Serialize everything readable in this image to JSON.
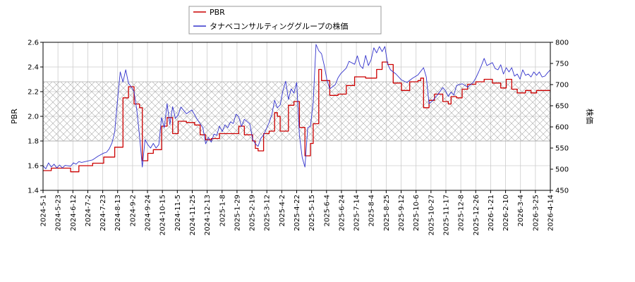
{
  "chart_data": {
    "type": "line",
    "x_ticks": [
      "2024-5-1",
      "2024-5-23",
      "2024-6-12",
      "2024-7-2",
      "2024-7-23",
      "2024-8-13",
      "2024-9-2",
      "2024-9-24",
      "2024-10-15",
      "2024-11-5",
      "2024-11-25",
      "2024-12-13",
      "2025-1-8",
      "2025-1-29",
      "2025-2-19",
      "2025-3-12",
      "2025-4-2",
      "2025-4-22",
      "2025-5-15",
      "2025-6-4",
      "2025-6-24",
      "2025-7-14",
      "2025-8-4",
      "2025-8-25",
      "2025-9-12",
      "2025-10-6",
      "2025-10-27",
      "2025-11-17",
      "2025-12-8",
      "2025-12-26",
      "2026-1-21",
      "2026-2-10",
      "2026-3-4",
      "2026-3-25",
      "2026-4-14"
    ],
    "y_left_label": "PBR",
    "y_right_label": "株価",
    "y_left_range": [
      1.4,
      2.6
    ],
    "y_left_ticks": [
      "1.4",
      "1.6",
      "1.8",
      "2.0",
      "2.2",
      "2.4",
      "2.6"
    ],
    "y_right_range": [
      450,
      800
    ],
    "y_right_ticks": [
      "450",
      "500",
      "550",
      "600",
      "650",
      "700",
      "750",
      "800"
    ],
    "band_left": [
      1.8,
      2.28
    ],
    "grid": true,
    "legend_position": "top-center",
    "series": [
      {
        "name": "PBR",
        "axis": "left",
        "color": "#cc0000",
        "points": [
          [
            0,
            1.56
          ],
          [
            3,
            1.58
          ],
          [
            8,
            1.58
          ],
          [
            10,
            1.55
          ],
          [
            13,
            1.6
          ],
          [
            18,
            1.62
          ],
          [
            22,
            1.67
          ],
          [
            26,
            1.75
          ],
          [
            29,
            2.15
          ],
          [
            31,
            2.24
          ],
          [
            33,
            2.1
          ],
          [
            35,
            2.07
          ],
          [
            36,
            1.64
          ],
          [
            38,
            1.7
          ],
          [
            40,
            1.73
          ],
          [
            43,
            1.92
          ],
          [
            45,
            1.99
          ],
          [
            47,
            1.86
          ],
          [
            49,
            1.96
          ],
          [
            52,
            1.95
          ],
          [
            55,
            1.93
          ],
          [
            57,
            1.85
          ],
          [
            59,
            1.81
          ],
          [
            61,
            1.82
          ],
          [
            64,
            1.86
          ],
          [
            67,
            1.86
          ],
          [
            69,
            1.86
          ],
          [
            71,
            1.92
          ],
          [
            73,
            1.85
          ],
          [
            76,
            1.8
          ],
          [
            77,
            1.74
          ],
          [
            78,
            1.72
          ],
          [
            80,
            1.86
          ],
          [
            82,
            1.88
          ],
          [
            84,
            2.03
          ],
          [
            85,
            2.0
          ],
          [
            86,
            1.88
          ],
          [
            89,
            2.09
          ],
          [
            91,
            2.12
          ],
          [
            93,
            1.91
          ],
          [
            95,
            1.68
          ],
          [
            97,
            1.78
          ],
          [
            98,
            1.94
          ],
          [
            100,
            2.38
          ],
          [
            101,
            2.29
          ],
          [
            104,
            2.17
          ],
          [
            107,
            2.18
          ],
          [
            110,
            2.25
          ],
          [
            113,
            2.32
          ],
          [
            117,
            2.31
          ],
          [
            121,
            2.38
          ],
          [
            123,
            2.44
          ],
          [
            125,
            2.42
          ],
          [
            127,
            2.27
          ],
          [
            130,
            2.21
          ],
          [
            133,
            2.28
          ],
          [
            136,
            2.29
          ],
          [
            137,
            2.31
          ],
          [
            138,
            2.07
          ],
          [
            140,
            2.13
          ],
          [
            142,
            2.18
          ],
          [
            145,
            2.12
          ],
          [
            147,
            2.1
          ],
          [
            148,
            2.16
          ],
          [
            150,
            2.15
          ],
          [
            152,
            2.22
          ],
          [
            154,
            2.26
          ],
          [
            157,
            2.28
          ],
          [
            160,
            2.3
          ],
          [
            163,
            2.27
          ],
          [
            166,
            2.23
          ],
          [
            168,
            2.3
          ],
          [
            170,
            2.22
          ],
          [
            172,
            2.19
          ],
          [
            175,
            2.21
          ],
          [
            177,
            2.19
          ],
          [
            179,
            2.21
          ],
          [
            184,
            2.21
          ]
        ]
      },
      {
        "name": "タナベコンサルティンググループの株価",
        "axis": "right",
        "color": "#3333cc",
        "points": [
          [
            0,
            508
          ],
          [
            1,
            501
          ],
          [
            2,
            515
          ],
          [
            3,
            505
          ],
          [
            4,
            512
          ],
          [
            5,
            503
          ],
          [
            6,
            510
          ],
          [
            7,
            503
          ],
          [
            8,
            509
          ],
          [
            10,
            507
          ],
          [
            11,
            515
          ],
          [
            12,
            512
          ],
          [
            13,
            518
          ],
          [
            14,
            516
          ],
          [
            16,
            519
          ],
          [
            18,
            522
          ],
          [
            20,
            531
          ],
          [
            22,
            538
          ],
          [
            23,
            540
          ],
          [
            24,
            548
          ],
          [
            25,
            562
          ],
          [
            26,
            588
          ],
          [
            27,
            662
          ],
          [
            28,
            730
          ],
          [
            29,
            706
          ],
          [
            30,
            735
          ],
          [
            31,
            703
          ],
          [
            32,
            695
          ],
          [
            33,
            683
          ],
          [
            34,
            640
          ],
          [
            35,
            578
          ],
          [
            36,
            505
          ],
          [
            37,
            570
          ],
          [
            38,
            558
          ],
          [
            39,
            550
          ],
          [
            40,
            561
          ],
          [
            41,
            550
          ],
          [
            42,
            558
          ],
          [
            43,
            622
          ],
          [
            44,
            598
          ],
          [
            45,
            655
          ],
          [
            46,
            605
          ],
          [
            47,
            648
          ],
          [
            48,
            620
          ],
          [
            49,
            628
          ],
          [
            50,
            647
          ],
          [
            52,
            631
          ],
          [
            54,
            640
          ],
          [
            56,
            617
          ],
          [
            58,
            598
          ],
          [
            59,
            560
          ],
          [
            60,
            575
          ],
          [
            61,
            564
          ],
          [
            62,
            583
          ],
          [
            63,
            580
          ],
          [
            64,
            602
          ],
          [
            65,
            589
          ],
          [
            66,
            605
          ],
          [
            67,
            598
          ],
          [
            68,
            612
          ],
          [
            69,
            608
          ],
          [
            70,
            630
          ],
          [
            71,
            624
          ],
          [
            72,
            601
          ],
          [
            73,
            618
          ],
          [
            75,
            607
          ],
          [
            76,
            571
          ],
          [
            77,
            560
          ],
          [
            78,
            554
          ],
          [
            79,
            573
          ],
          [
            80,
            581
          ],
          [
            82,
            610
          ],
          [
            83,
            629
          ],
          [
            84,
            663
          ],
          [
            85,
            645
          ],
          [
            86,
            652
          ],
          [
            87,
            686
          ],
          [
            88,
            708
          ],
          [
            89,
            665
          ],
          [
            90,
            690
          ],
          [
            91,
            680
          ],
          [
            92,
            705
          ],
          [
            93,
            580
          ],
          [
            94,
            528
          ],
          [
            95,
            505
          ],
          [
            96,
            598
          ],
          [
            97,
            602
          ],
          [
            98,
            658
          ],
          [
            99,
            795
          ],
          [
            100,
            780
          ],
          [
            101,
            773
          ],
          [
            102,
            745
          ],
          [
            103,
            710
          ],
          [
            104,
            690
          ],
          [
            106,
            700
          ],
          [
            107,
            716
          ],
          [
            108,
            726
          ],
          [
            110,
            739
          ],
          [
            111,
            755
          ],
          [
            113,
            748
          ],
          [
            114,
            768
          ],
          [
            115,
            745
          ],
          [
            116,
            738
          ],
          [
            117,
            769
          ],
          [
            118,
            745
          ],
          [
            119,
            759
          ],
          [
            120,
            787
          ],
          [
            121,
            775
          ],
          [
            122,
            790
          ],
          [
            123,
            778
          ],
          [
            124,
            790
          ],
          [
            125,
            748
          ],
          [
            126,
            735
          ],
          [
            127,
            730
          ],
          [
            128,
            725
          ],
          [
            130,
            711
          ],
          [
            132,
            705
          ],
          [
            134,
            715
          ],
          [
            136,
            723
          ],
          [
            138,
            740
          ],
          [
            139,
            718
          ],
          [
            140,
            655
          ],
          [
            141,
            660
          ],
          [
            143,
            675
          ],
          [
            145,
            693
          ],
          [
            146,
            685
          ],
          [
            147,
            672
          ],
          [
            148,
            682
          ],
          [
            149,
            675
          ],
          [
            150,
            698
          ],
          [
            152,
            702
          ],
          [
            154,
            694
          ],
          [
            156,
            705
          ],
          [
            157,
            716
          ],
          [
            158,
            730
          ],
          [
            159,
            745
          ],
          [
            160,
            762
          ],
          [
            161,
            745
          ],
          [
            163,
            752
          ],
          [
            164,
            738
          ],
          [
            165,
            735
          ],
          [
            166,
            747
          ],
          [
            167,
            725
          ],
          [
            168,
            740
          ],
          [
            169,
            730
          ],
          [
            170,
            740
          ],
          [
            171,
            720
          ],
          [
            172,
            725
          ],
          [
            173,
            713
          ],
          [
            174,
            735
          ],
          [
            175,
            722
          ],
          [
            176,
            725
          ],
          [
            177,
            718
          ],
          [
            178,
            730
          ],
          [
            179,
            722
          ],
          [
            180,
            730
          ],
          [
            181,
            718
          ],
          [
            182,
            720
          ],
          [
            183,
            728
          ],
          [
            184,
            735
          ]
        ]
      }
    ]
  }
}
